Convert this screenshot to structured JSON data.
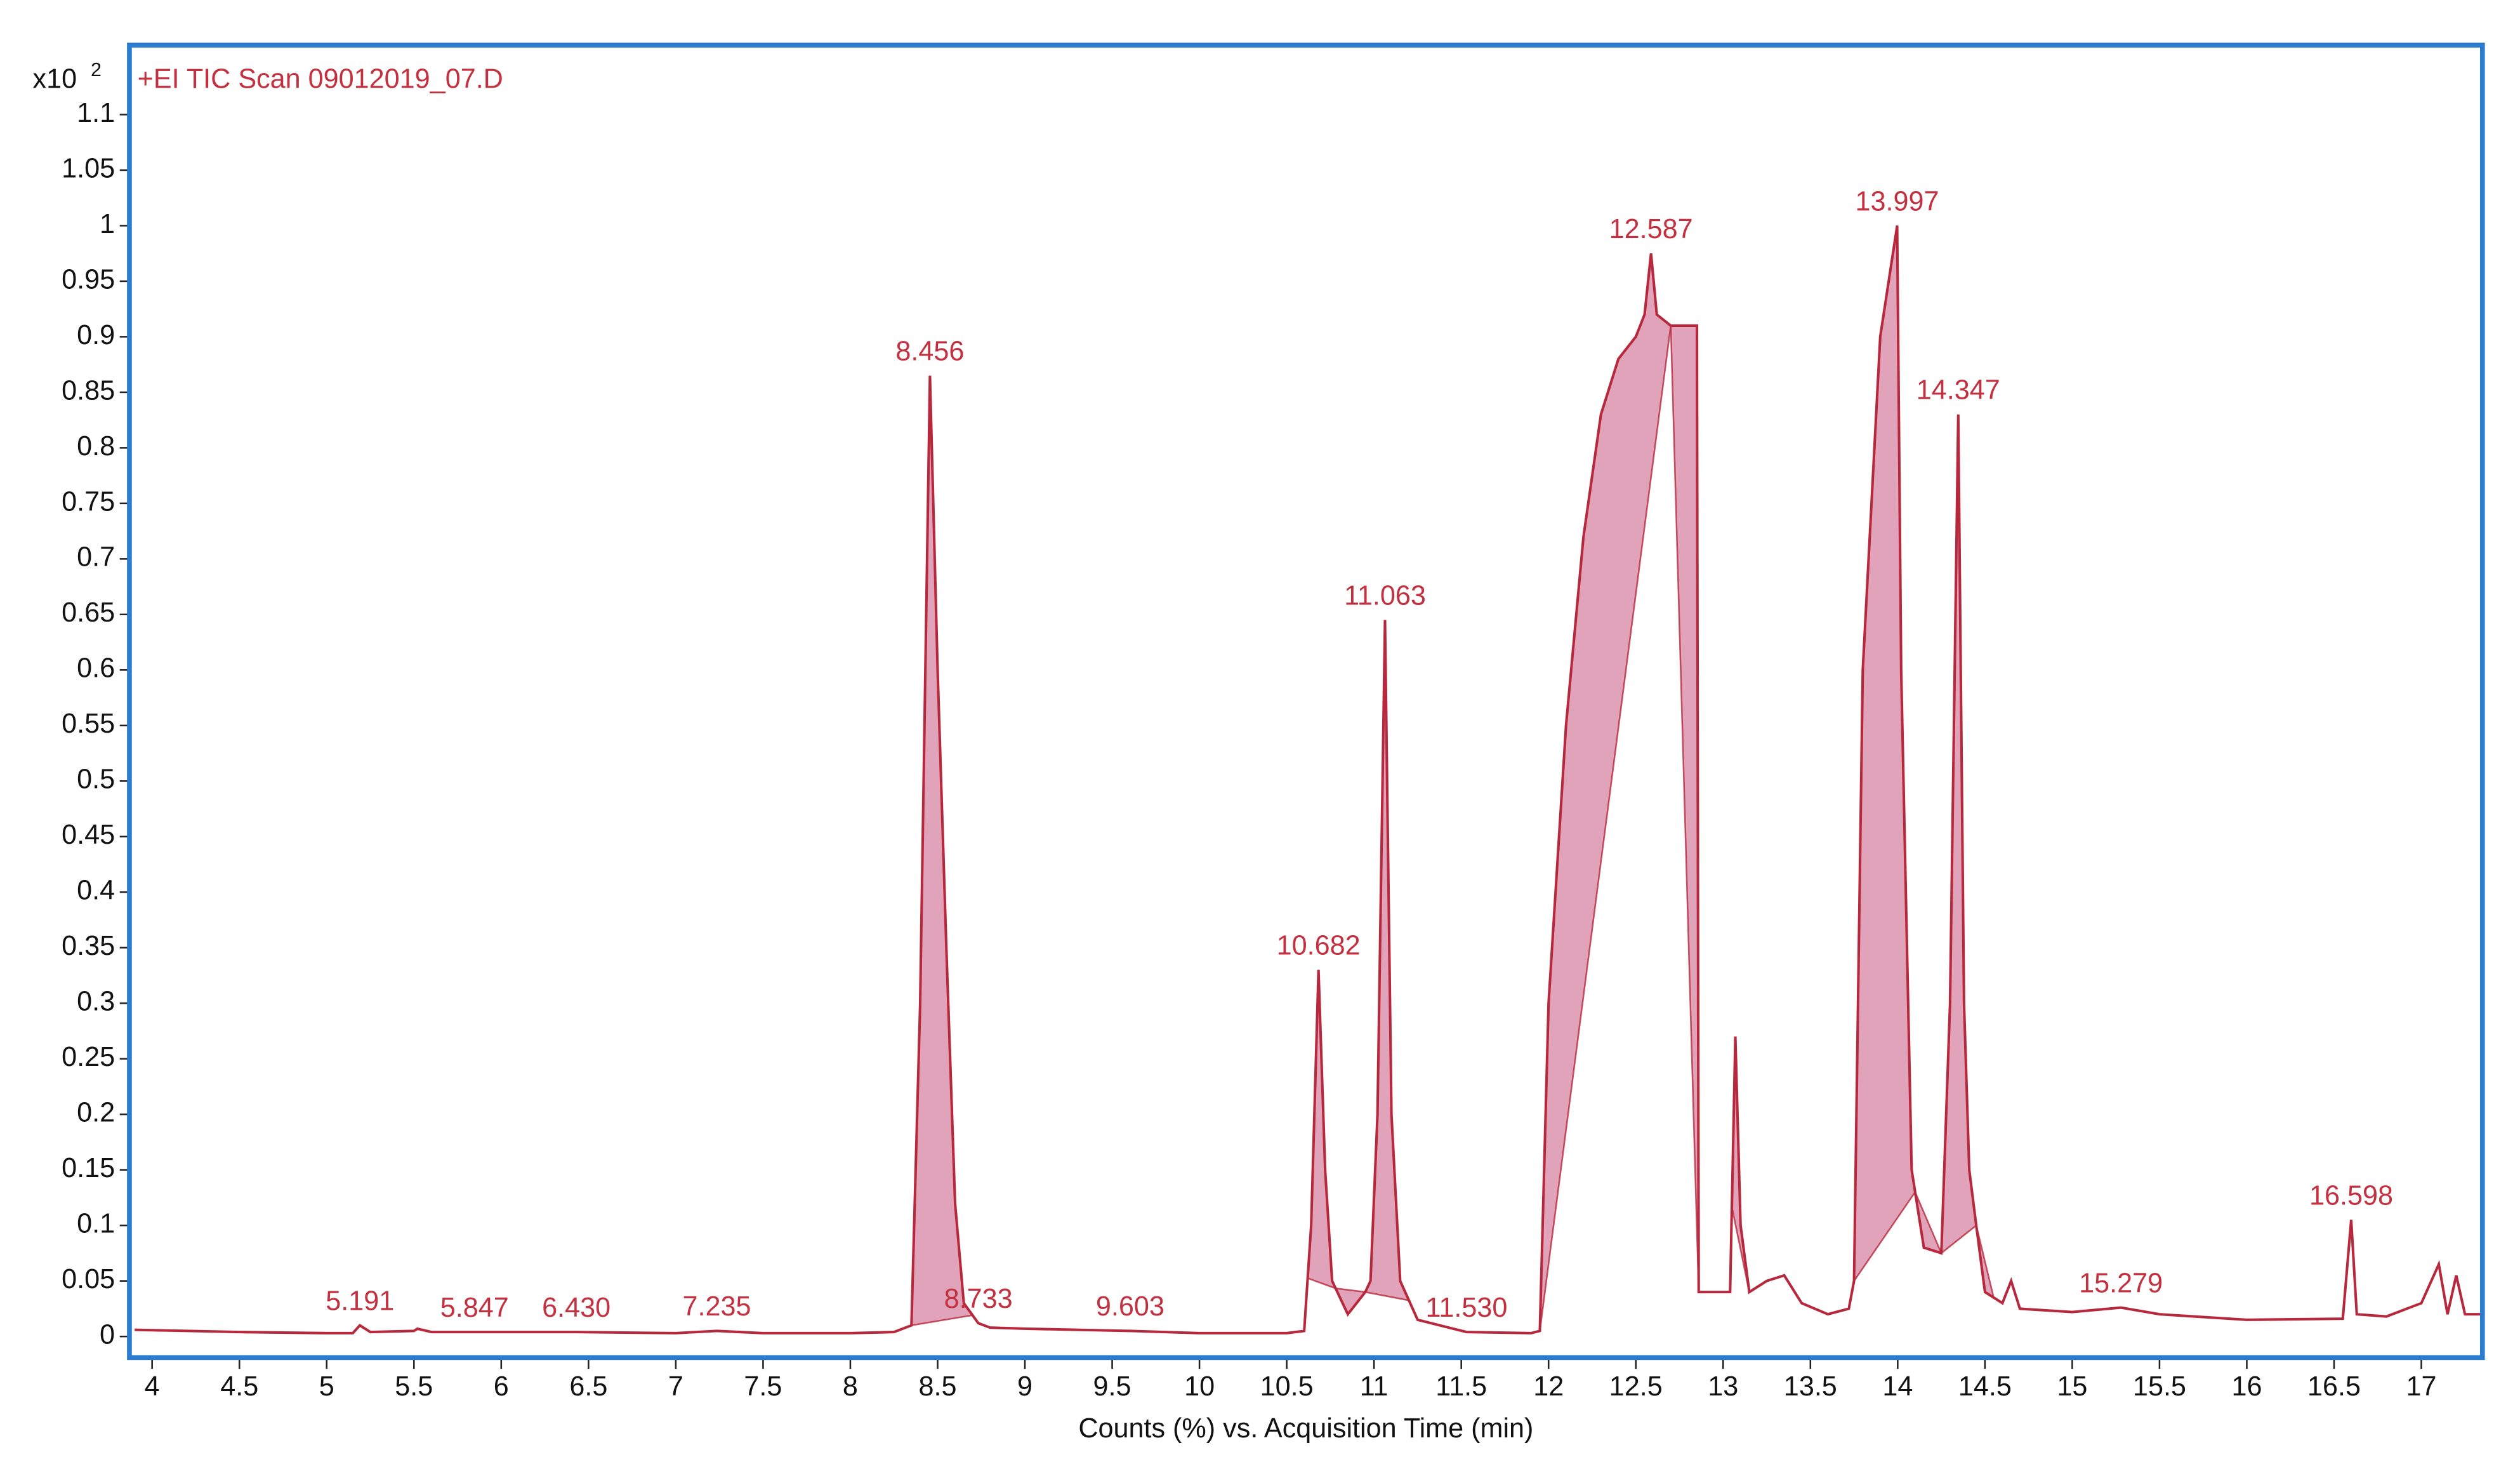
{
  "chart_data": {
    "type": "line",
    "title": "+EI TIC Scan 09012019_07.D",
    "y_multiplier": "x10",
    "y_exponent": "2",
    "xlabel": "Counts (%) vs. Acquisition Time (min)",
    "xlim": [
      3.87,
      17.35
    ],
    "ylim": [
      -0.019,
      1.1625
    ],
    "xticks": [
      4,
      4.5,
      5,
      5.5,
      6,
      6.5,
      7,
      7.5,
      8,
      8.5,
      9,
      9.5,
      10,
      10.5,
      11,
      11.5,
      12,
      12.5,
      13,
      13.5,
      14,
      14.5,
      15,
      15.5,
      16,
      16.5,
      17
    ],
    "yticks": [
      0,
      0.05,
      0.1,
      0.15,
      0.2,
      0.25,
      0.3,
      0.35,
      0.4,
      0.45,
      0.5,
      0.55,
      0.6,
      0.65,
      0.7,
      0.75,
      0.8,
      0.85,
      0.9,
      0.95,
      1,
      1.05,
      1.1
    ],
    "x": [
      3.9,
      4.5,
      5.0,
      5.15,
      5.19,
      5.25,
      5.5,
      5.52,
      5.6,
      6.0,
      6.43,
      7.0,
      7.235,
      7.5,
      8.0,
      8.25,
      8.35,
      8.4,
      8.456,
      8.5,
      8.55,
      8.6,
      8.65,
      8.733,
      8.8,
      9.0,
      9.603,
      10.0,
      10.5,
      10.6,
      10.64,
      10.682,
      10.72,
      10.76,
      10.85,
      10.95,
      10.98,
      11.02,
      11.063,
      11.1,
      11.15,
      11.25,
      11.53,
      11.9,
      11.95,
      12.0,
      12.1,
      12.2,
      12.3,
      12.4,
      12.5,
      12.55,
      12.587,
      12.62,
      12.7,
      12.85,
      12.86,
      13.0,
      13.04,
      13.07,
      13.1,
      13.15,
      13.25,
      13.35,
      13.45,
      13.6,
      13.72,
      13.75,
      13.8,
      13.9,
      13.997,
      14.02,
      14.08,
      14.15,
      14.25,
      14.3,
      14.347,
      14.38,
      14.41,
      14.45,
      14.5,
      14.6,
      14.65,
      14.7,
      15.0,
      15.279,
      15.5,
      16.0,
      16.55,
      16.598,
      16.63,
      16.8,
      17.0,
      17.1,
      17.15,
      17.2,
      17.25,
      17.35
    ],
    "series": [
      {
        "name": "TIC",
        "color": "#b8283c",
        "values": [
          0.006,
          0.004,
          0.003,
          0.003,
          0.01,
          0.004,
          0.005,
          0.007,
          0.004,
          0.004,
          0.004,
          0.003,
          0.005,
          0.003,
          0.003,
          0.004,
          0.01,
          0.3,
          0.865,
          0.6,
          0.35,
          0.12,
          0.03,
          0.012,
          0.008,
          0.007,
          0.005,
          0.003,
          0.003,
          0.005,
          0.1,
          0.33,
          0.15,
          0.05,
          0.02,
          0.04,
          0.05,
          0.2,
          0.645,
          0.2,
          0.05,
          0.015,
          0.004,
          0.003,
          0.005,
          0.3,
          0.55,
          0.72,
          0.83,
          0.88,
          0.9,
          0.92,
          0.975,
          0.92,
          0.91,
          0.91,
          0.04,
          0.04,
          0.04,
          0.27,
          0.1,
          0.04,
          0.05,
          0.055,
          0.03,
          0.02,
          0.025,
          0.05,
          0.6,
          0.9,
          1.0,
          0.6,
          0.15,
          0.08,
          0.075,
          0.3,
          0.83,
          0.3,
          0.15,
          0.1,
          0.04,
          0.03,
          0.05,
          0.025,
          0.022,
          0.026,
          0.02,
          0.015,
          0.016,
          0.105,
          0.02,
          0.018,
          0.03,
          0.065,
          0.02,
          0.055,
          0.02,
          0.02
        ]
      }
    ],
    "fill_color": "#e0a3b9",
    "integrated_regions": [
      [
        8.35,
        8.7
      ],
      [
        10.62,
        10.78
      ],
      [
        10.78,
        10.95
      ],
      [
        10.95,
        11.2
      ],
      [
        11.95,
        12.7
      ],
      [
        12.7,
        12.86
      ],
      [
        13.05,
        13.15
      ],
      [
        13.75,
        14.1
      ],
      [
        14.1,
        14.25
      ],
      [
        14.25,
        14.45
      ],
      [
        14.45,
        14.55
      ]
    ],
    "annotations": [
      {
        "text": "5.191",
        "x": 5.191,
        "y": 0.01
      },
      {
        "text": "5.847",
        "x": 5.847,
        "y": 0.004
      },
      {
        "text": "6.430",
        "x": 6.43,
        "y": 0.004
      },
      {
        "text": "7.235",
        "x": 7.235,
        "y": 0.005
      },
      {
        "text": "8.456",
        "x": 8.456,
        "y": 0.865
      },
      {
        "text": "8.733",
        "x": 8.733,
        "y": 0.012
      },
      {
        "text": "9.603",
        "x": 9.603,
        "y": 0.005
      },
      {
        "text": "10.682",
        "x": 10.682,
        "y": 0.33
      },
      {
        "text": "11.063",
        "x": 11.063,
        "y": 0.645
      },
      {
        "text": "11.530",
        "x": 11.53,
        "y": 0.004
      },
      {
        "text": "12.587",
        "x": 12.587,
        "y": 0.975
      },
      {
        "text": "13.997",
        "x": 13.997,
        "y": 1.0
      },
      {
        "text": "14.347",
        "x": 14.347,
        "y": 0.83
      },
      {
        "text": "15.279",
        "x": 15.279,
        "y": 0.026
      },
      {
        "text": "16.598",
        "x": 16.598,
        "y": 0.105
      }
    ]
  }
}
